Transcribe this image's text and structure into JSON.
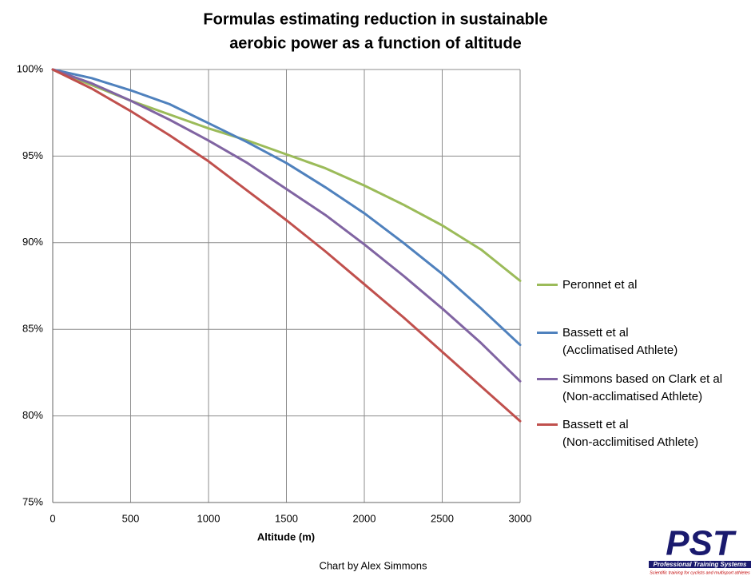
{
  "chart_data": {
    "type": "line",
    "title": "Formulas estimating reduction in sustainable",
    "subtitle": "aerobic power as a function of altitude",
    "x_label": "Altitude (m)",
    "annotation": "Chart by Alex Simmons",
    "x": [
      0,
      250,
      500,
      750,
      1000,
      1250,
      1500,
      1750,
      2000,
      2250,
      2500,
      2750,
      3000
    ],
    "xlim": [
      0,
      3000
    ],
    "xticks": [
      0,
      500,
      1000,
      1500,
      2000,
      2500,
      3000
    ],
    "ylim": [
      75,
      100
    ],
    "yticks": [
      {
        "value": 75,
        "label": "75%"
      },
      {
        "value": 80,
        "label": "80%"
      },
      {
        "value": 85,
        "label": "85%"
      },
      {
        "value": 90,
        "label": "90%"
      },
      {
        "value": 95,
        "label": "95%"
      },
      {
        "value": 100,
        "label": "100%"
      }
    ],
    "grid": true,
    "legend": "right",
    "series": [
      {
        "name": "Peronnet et al",
        "color": "#9bbb59",
        "values": [
          100,
          99.1,
          98.2,
          97.4,
          96.6,
          95.9,
          95.1,
          94.3,
          93.3,
          92.2,
          91.0,
          89.6,
          87.8
        ]
      },
      {
        "name": "Bassett et al\n(Acclimatised Athlete)",
        "color": "#4f81bd",
        "values": [
          100,
          99.5,
          98.8,
          98.0,
          96.9,
          95.8,
          94.6,
          93.2,
          91.7,
          90.0,
          88.2,
          86.2,
          84.1
        ]
      },
      {
        "name": "Simmons based on Clark et al\n(Non-acclimatised Athlete)",
        "color": "#8064a2",
        "values": [
          100,
          99.2,
          98.2,
          97.1,
          95.9,
          94.6,
          93.1,
          91.6,
          89.9,
          88.1,
          86.2,
          84.2,
          82.0
        ]
      },
      {
        "name": "Bassett et al\n(Non-acclimitised Athlete)",
        "color": "#c0504d",
        "values": [
          100,
          98.9,
          97.6,
          96.2,
          94.7,
          93.0,
          91.3,
          89.5,
          87.6,
          85.7,
          83.7,
          81.7,
          79.7
        ]
      }
    ]
  },
  "logo": {
    "mark": "PST",
    "name": "Professional Training Systems",
    "tagline": "Scientific training for cyclists and multisport athletes"
  }
}
